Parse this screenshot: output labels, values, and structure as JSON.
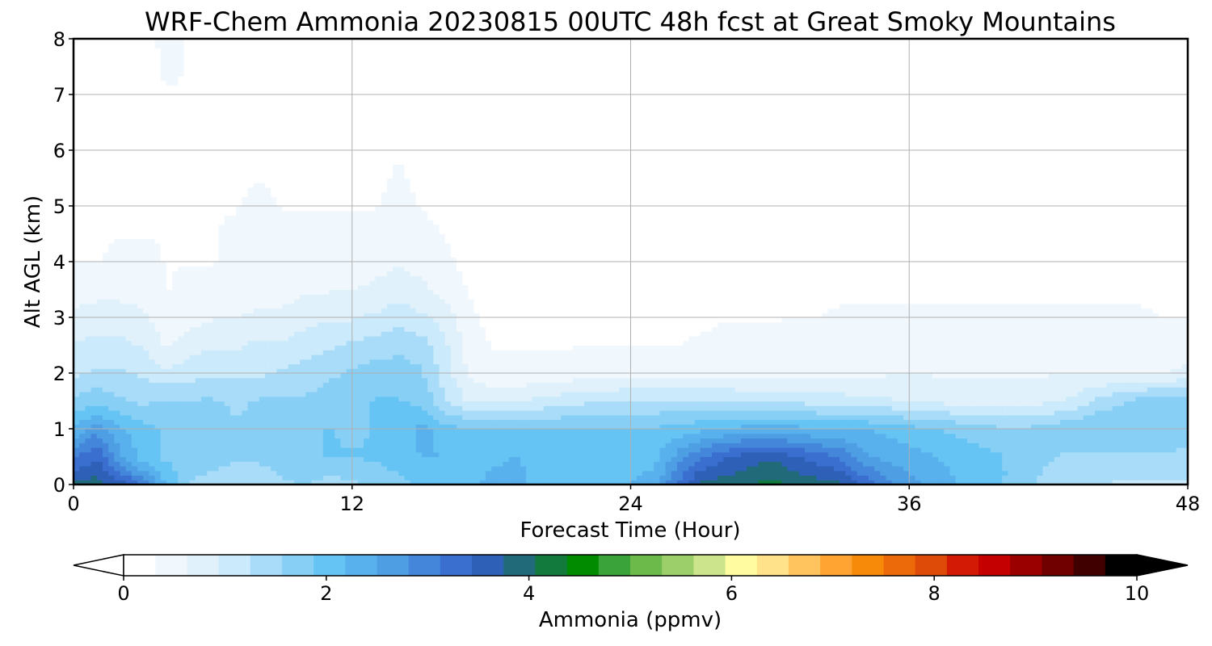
{
  "chart_data": {
    "type": "heatmap",
    "title": "WRF-Chem Ammonia  20230815 00UTC 48h fcst at Great Smoky Mountains",
    "xlabel": "Forecast Time (Hour)",
    "ylabel": "Alt AGL (km)",
    "xlim": [
      0,
      48
    ],
    "ylim": [
      0,
      8
    ],
    "x_ticks": [
      "0",
      "12",
      "24",
      "36",
      "48"
    ],
    "y_ticks": [
      "0",
      "1",
      "2",
      "3",
      "4",
      "5",
      "6",
      "7",
      "8"
    ],
    "grid": true,
    "colorbar": {
      "label": "Ammonia  (ppmv)",
      "range": [
        0,
        10
      ],
      "ticks": [
        "0",
        "2",
        "4",
        "6",
        "8",
        "10"
      ],
      "extend": "both",
      "orientation": "horizontal",
      "colors": [
        "#ffffff",
        "#f1f8fd",
        "#e1f1fb",
        "#cbeafb",
        "#a9dcf8",
        "#88cff6",
        "#66c4f5",
        "#58b1ec",
        "#4e9ee4",
        "#4486da",
        "#3a6ecf",
        "#2e60b8",
        "#206a7a",
        "#117a3c",
        "#008b00",
        "#3aa33a",
        "#6cbb4a",
        "#9ccf6a",
        "#cce58c",
        "#fefba0",
        "#ffe28a",
        "#ffc45e",
        "#ffa432",
        "#f88a0a",
        "#ec6a0a",
        "#de4a08",
        "#d21a04",
        "#c40000",
        "#9a0000",
        "#700000",
        "#400000",
        "#000000"
      ],
      "extend_colors": {
        "under": "#ffffff",
        "over": "#000000"
      }
    },
    "x": [
      0,
      1,
      2,
      3,
      4,
      5,
      6,
      7,
      8,
      9,
      10,
      11,
      12,
      13,
      14,
      15,
      16,
      17,
      18,
      19,
      20,
      21,
      22,
      23,
      24,
      25,
      26,
      27,
      28,
      29,
      30,
      31,
      32,
      33,
      34,
      35,
      36,
      37,
      38,
      39,
      40,
      41,
      42,
      43,
      44,
      45,
      46,
      47,
      48
    ],
    "y": [
      0,
      0.5,
      1,
      1.5,
      2,
      2.5,
      3,
      3.5,
      4,
      5,
      6,
      7,
      8
    ],
    "z": [
      [
        3.8,
        3.9,
        3.6,
        3.0,
        2.2,
        1.5,
        1.4,
        1.3,
        1.4,
        1.5,
        1.6,
        1.4,
        1.5,
        1.7,
        1.8,
        1.9,
        1.9,
        2.1,
        2.3,
        2.3,
        2.1,
        2.0,
        2.0,
        2.1,
        2.2,
        2.3,
        3.2,
        3.8,
        3.9,
        4.0,
        4.2,
        4.0,
        3.9,
        3.8,
        3.4,
        3.0,
        2.6,
        2.4,
        2.2,
        2.0,
        1.9,
        1.7,
        1.4,
        1.3,
        1.3,
        1.2,
        1.2,
        1.2,
        1.2
      ],
      [
        3.1,
        3.4,
        2.6,
        2.0,
        1.8,
        1.8,
        1.7,
        1.6,
        1.6,
        1.7,
        1.8,
        1.9,
        1.9,
        1.9,
        2.0,
        2.2,
        2.2,
        2.0,
        2.1,
        2.2,
        2.1,
        2.0,
        2.0,
        2.0,
        2.1,
        2.1,
        2.6,
        3.1,
        3.4,
        3.6,
        3.7,
        3.5,
        3.3,
        3.1,
        2.6,
        2.4,
        2.3,
        2.2,
        2.1,
        2.0,
        1.9,
        1.7,
        1.6,
        1.5,
        1.5,
        1.5,
        1.5,
        1.5,
        1.5
      ],
      [
        2.2,
        2.7,
        2.2,
        2.0,
        1.8,
        1.7,
        1.7,
        1.6,
        1.6,
        1.7,
        1.8,
        1.9,
        1.8,
        1.9,
        2.0,
        2.3,
        2.0,
        1.9,
        1.9,
        1.9,
        1.9,
        1.9,
        1.9,
        1.9,
        1.9,
        1.9,
        2.0,
        2.1,
        2.2,
        2.3,
        2.3,
        2.3,
        2.2,
        2.2,
        2.2,
        2.1,
        2.0,
        1.9,
        1.8,
        1.7,
        1.6,
        1.6,
        1.7,
        1.8,
        1.9,
        1.9,
        1.8,
        1.8,
        1.7
      ],
      [
        1.6,
        1.8,
        1.6,
        1.5,
        1.6,
        1.6,
        1.6,
        1.5,
        1.6,
        1.6,
        1.6,
        1.7,
        1.8,
        1.9,
        1.9,
        1.8,
        1.3,
        0.9,
        0.9,
        0.9,
        1.0,
        1.1,
        1.2,
        1.2,
        1.3,
        1.3,
        1.3,
        1.3,
        1.3,
        1.2,
        1.2,
        1.2,
        1.1,
        1.1,
        1.0,
        1.0,
        0.9,
        0.9,
        0.8,
        0.8,
        0.8,
        0.8,
        0.9,
        1.0,
        1.3,
        1.5,
        1.7,
        1.8,
        1.8
      ],
      [
        1.2,
        1.3,
        1.3,
        1.2,
        1.0,
        1.1,
        1.2,
        1.2,
        1.2,
        1.3,
        1.4,
        1.5,
        1.6,
        1.7,
        1.7,
        1.6,
        1.1,
        0.6,
        0.4,
        0.4,
        0.4,
        0.4,
        0.5,
        0.5,
        0.5,
        0.5,
        0.5,
        0.5,
        0.5,
        0.5,
        0.5,
        0.5,
        0.5,
        0.5,
        0.5,
        0.6,
        0.6,
        0.6,
        0.6,
        0.6,
        0.6,
        0.6,
        0.6,
        0.6,
        0.6,
        0.6,
        0.6,
        0.6,
        0.7
      ],
      [
        1.0,
        1.0,
        1.0,
        0.9,
        0.6,
        0.8,
        0.9,
        0.9,
        1.0,
        1.0,
        1.1,
        1.2,
        1.3,
        1.4,
        1.5,
        1.4,
        1.0,
        0.5,
        0.3,
        0.3,
        0.3,
        0.3,
        0.3,
        0.3,
        0.3,
        0.3,
        0.3,
        0.4,
        0.4,
        0.4,
        0.4,
        0.5,
        0.5,
        0.5,
        0.5,
        0.5,
        0.5,
        0.5,
        0.6,
        0.6,
        0.6,
        0.6,
        0.6,
        0.5,
        0.5,
        0.5,
        0.5,
        0.5,
        0.5
      ],
      [
        0.7,
        0.8,
        0.8,
        0.7,
        0.4,
        0.5,
        0.6,
        0.6,
        0.7,
        0.7,
        0.8,
        0.9,
        0.9,
        1.0,
        1.1,
        1.0,
        0.8,
        0.4,
        0.2,
        0.2,
        0.2,
        0.2,
        0.2,
        0.2,
        0.2,
        0.2,
        0.2,
        0.2,
        0.3,
        0.3,
        0.3,
        0.3,
        0.3,
        0.4,
        0.4,
        0.4,
        0.4,
        0.4,
        0.4,
        0.4,
        0.4,
        0.4,
        0.4,
        0.4,
        0.4,
        0.4,
        0.4,
        0.3,
        0.3
      ],
      [
        0.5,
        0.5,
        0.5,
        0.5,
        0.3,
        0.4,
        0.4,
        0.5,
        0.5,
        0.5,
        0.6,
        0.6,
        0.6,
        0.7,
        0.8,
        0.7,
        0.5,
        0.3,
        0.1,
        0.1,
        0.1,
        0.1,
        0.1,
        0.1,
        0.1,
        0.1,
        0.1,
        0.1,
        0.2,
        0.2,
        0.2,
        0.2,
        0.2,
        0.2,
        0.2,
        0.2,
        0.2,
        0.2,
        0.2,
        0.2,
        0.2,
        0.2,
        0.2,
        0.2,
        0.2,
        0.2,
        0.2,
        0.2,
        0.2
      ],
      [
        0.3,
        0.3,
        0.4,
        0.4,
        0.3,
        0.3,
        0.3,
        0.4,
        0.4,
        0.4,
        0.5,
        0.5,
        0.5,
        0.5,
        0.6,
        0.5,
        0.4,
        0.2,
        0.1,
        0.1,
        0.1,
        0.1,
        0.1,
        0.1,
        0.1,
        0.1,
        0.1,
        0.1,
        0.1,
        0.1,
        0.1,
        0.1,
        0.1,
        0.1,
        0.1,
        0.1,
        0.1,
        0.1,
        0.1,
        0.1,
        0.1,
        0.1,
        0.1,
        0.1,
        0.1,
        0.1,
        0.1,
        0.1,
        0.1
      ],
      [
        0.2,
        0.2,
        0.2,
        0.2,
        0.3,
        0.3,
        0.3,
        0.3,
        0.4,
        0.3,
        0.3,
        0.3,
        0.3,
        0.3,
        0.4,
        0.3,
        0.2,
        0.1,
        0.1,
        0.1,
        0.1,
        0.1,
        0.1,
        0.1,
        0.1,
        0.1,
        0.1,
        0.1,
        0.1,
        0.1,
        0.1,
        0.1,
        0.1,
        0.1,
        0.1,
        0.1,
        0.1,
        0.1,
        0.1,
        0.1,
        0.1,
        0.1,
        0.1,
        0.1,
        0.1,
        0.1,
        0.1,
        0.1,
        0.1
      ],
      [
        0.1,
        0.1,
        0.2,
        0.2,
        0.3,
        0.3,
        0.2,
        0.2,
        0.2,
        0.2,
        0.2,
        0.2,
        0.1,
        0.2,
        0.3,
        0.2,
        0.1,
        0.1,
        0.1,
        0.1,
        0.1,
        0.1,
        0.1,
        0.1,
        0.1,
        0.1,
        0.1,
        0.1,
        0.1,
        0.1,
        0.1,
        0.1,
        0.1,
        0.1,
        0.1,
        0.1,
        0.1,
        0.1,
        0.1,
        0.1,
        0.1,
        0.1,
        0.1,
        0.1,
        0.1,
        0.1,
        0.1,
        0.1,
        0.1
      ],
      [
        0.1,
        0.1,
        0.2,
        0.2,
        0.3,
        0.3,
        0.2,
        0.2,
        0.2,
        0.2,
        0.2,
        0.1,
        0.1,
        0.2,
        0.2,
        0.1,
        0.1,
        0.1,
        0.1,
        0.1,
        0.1,
        0.1,
        0.1,
        0.1,
        0.1,
        0.1,
        0.1,
        0.1,
        0.1,
        0.1,
        0.1,
        0.1,
        0.1,
        0.1,
        0.1,
        0.1,
        0.1,
        0.1,
        0.1,
        0.1,
        0.1,
        0.1,
        0.1,
        0.1,
        0.1,
        0.1,
        0.1,
        0.1,
        0.1
      ],
      [
        0.2,
        0.2,
        0.2,
        0.2,
        0.4,
        0.3,
        0.2,
        0.2,
        0.2,
        0.2,
        0.2,
        0.1,
        0.1,
        0.2,
        0.2,
        0.1,
        0.1,
        0.1,
        0.1,
        0.1,
        0.1,
        0.1,
        0.1,
        0.1,
        0.1,
        0.1,
        0.1,
        0.1,
        0.1,
        0.1,
        0.1,
        0.1,
        0.1,
        0.1,
        0.1,
        0.1,
        0.1,
        0.1,
        0.1,
        0.1,
        0.1,
        0.1,
        0.1,
        0.1,
        0.1,
        0.1,
        0.1,
        0.1,
        0.1
      ]
    ]
  }
}
